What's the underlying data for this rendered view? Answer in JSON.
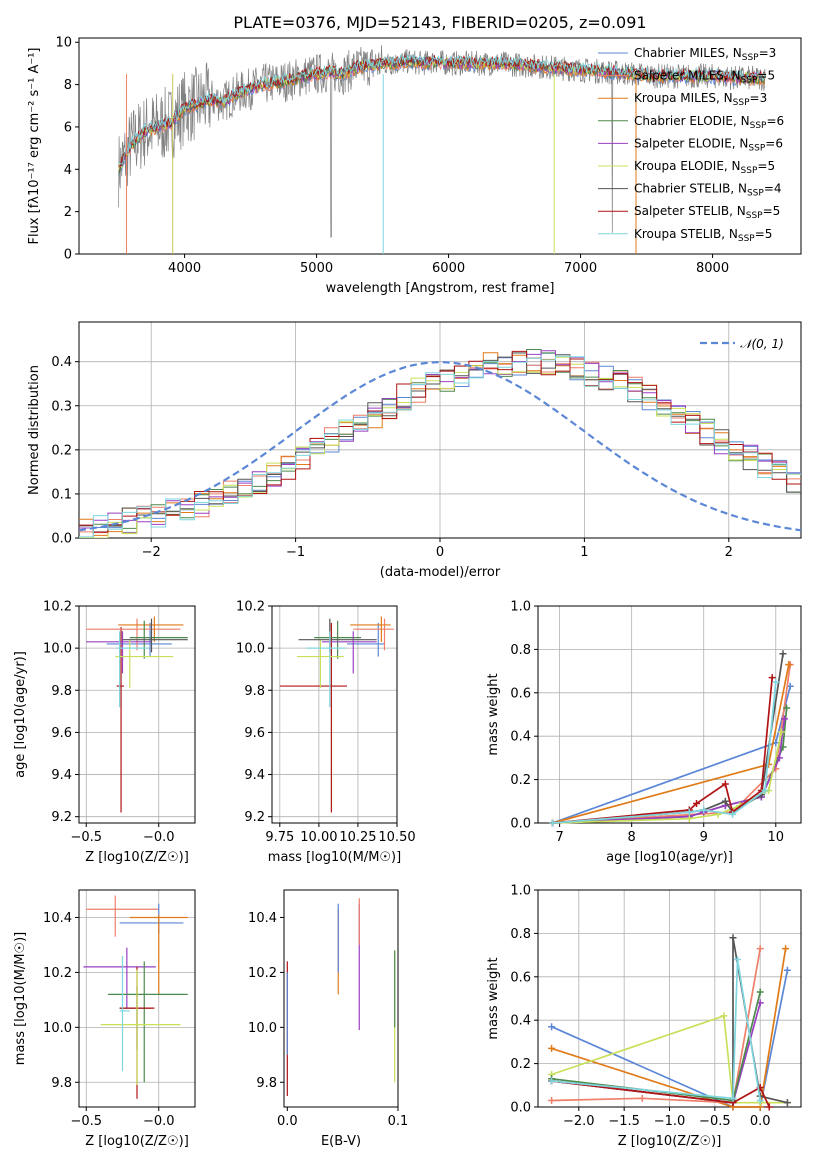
{
  "figure_title": "PLATE=0376, MJD=52143, FIBERID=0205, z=0.091",
  "colors": {
    "Chabrier MILES": "#5b87d6",
    "Salpeter MILES": "#ee7f6a",
    "Kroupa MILES": "#e07b1a",
    "Chabrier ELODIE": "#4d8a4d",
    "Salpeter ELODIE": "#9a3fc2",
    "Kroupa ELODIE": "#c8e05a",
    "Chabrier STELIB": "#555555",
    "Salpeter STELIB": "#b01414",
    "Kroupa STELIB": "#7fd6df",
    "data": "#808080",
    "gauss": "#5b87d6"
  },
  "chart_data": [
    {
      "type": "line",
      "id": "spectrum",
      "title": "PLATE=0376, MJD=52143, FIBERID=0205, z=0.091",
      "xlabel": "wavelength [Angstrom, rest frame]",
      "ylabel": "Flux [fλ10⁻¹⁷ erg cm⁻² s⁻¹ A⁻¹]",
      "xlim": [
        3200,
        8670
      ],
      "ylim": [
        0,
        10.2
      ],
      "xticks": [
        4000,
        5000,
        6000,
        7000,
        8000
      ],
      "yticks": [
        0,
        2,
        4,
        6,
        8,
        10
      ],
      "legend_position": "right",
      "legend": [
        "Chabrier MILES, N_SSP=3",
        "Salpeter MILES, N_SSP=5",
        "Kroupa MILES, N_SSP=3",
        "Chabrier ELODIE, N_SSP=6",
        "Salpeter ELODIE, N_SSP=6",
        "Kroupa ELODIE, N_SSP=5",
        "Chabrier STELIB, N_SSP=4",
        "Salpeter STELIB, N_SSP=5",
        "Kroupa STELIB, N_SSP=5"
      ],
      "continuum": {
        "x": [
          3500,
          3600,
          3700,
          3800,
          3900,
          4000,
          4100,
          4200,
          4300,
          4400,
          4500,
          4600,
          4700,
          4800,
          4900,
          5000,
          5100,
          5200,
          5300,
          5400,
          5500,
          5600,
          5700,
          5800,
          5900,
          6000,
          6200,
          6400,
          6600,
          6800,
          7000,
          7200,
          7400,
          7600,
          7800,
          8000,
          8200,
          8400
        ],
        "y": [
          4.0,
          5.2,
          5.8,
          6.0,
          6.2,
          6.9,
          7.1,
          7.3,
          7.2,
          7.6,
          7.8,
          8.0,
          8.1,
          8.2,
          8.4,
          8.5,
          8.6,
          8.5,
          8.8,
          8.9,
          9.0,
          9.0,
          9.1,
          9.0,
          9.1,
          9.0,
          9.0,
          9.0,
          8.9,
          8.8,
          8.7,
          8.6,
          8.5,
          8.4,
          8.4,
          8.4,
          8.3,
          8.3
        ]
      }
    },
    {
      "type": "line",
      "id": "residuals",
      "xlabel": "(data-model)/error",
      "ylabel": "Normed distribution",
      "xlim": [
        -2.5,
        2.5
      ],
      "ylim": [
        0,
        0.49
      ],
      "xticks": [
        -2,
        -1,
        0,
        1,
        2
      ],
      "yticks": [
        0.0,
        0.1,
        0.2,
        0.3,
        0.4
      ],
      "legend": [
        "𝒩(0, 1)"
      ],
      "legend_position": "upper right",
      "grid": true,
      "bin_width": 0.1,
      "histogram_base": [
        0.018,
        0.027,
        0.035,
        0.04,
        0.045,
        0.05,
        0.06,
        0.066,
        0.078,
        0.09,
        0.102,
        0.116,
        0.13,
        0.146,
        0.163,
        0.181,
        0.2,
        0.22,
        0.24,
        0.26,
        0.28,
        0.3,
        0.32,
        0.335,
        0.35,
        0.362,
        0.373,
        0.383,
        0.391,
        0.396,
        0.399,
        0.399,
        0.396,
        0.391,
        0.383,
        0.373,
        0.362,
        0.35,
        0.335,
        0.32,
        0.3,
        0.28,
        0.26,
        0.24,
        0.22,
        0.2,
        0.181,
        0.163,
        0.146,
        0.13
      ]
    },
    {
      "type": "scatter",
      "id": "age-vs-Z",
      "xlabel": "Z [log10(Z/Z☉)]",
      "ylabel": "age  [log10(age/yr)]",
      "xlim": [
        -0.55,
        0.25
      ],
      "ylim": [
        9.17,
        10.2
      ],
      "xticks": [
        -0.5,
        -0.0
      ],
      "yticks": [
        9.2,
        9.4,
        9.6,
        9.8,
        10.0,
        10.2
      ],
      "grid": true,
      "points": [
        {
          "series": "Salpeter STELIB",
          "x": -0.26,
          "y": 9.82,
          "xerr": [
            0.03,
            0.02
          ],
          "yerr": [
            0.6,
            0.28
          ]
        },
        {
          "series": "Chabrier MILES",
          "x": -0.06,
          "y": 10.02,
          "xerr": [
            0.3,
            0.15
          ],
          "yerr": [
            0.06,
            0.1
          ]
        },
        {
          "series": "Salpeter MILES",
          "x": -0.15,
          "y": 10.09,
          "xerr": [
            0.35,
            0.3
          ],
          "yerr": [
            0.1,
            0.05
          ]
        },
        {
          "series": "Kroupa MILES",
          "x": -0.03,
          "y": 10.11,
          "xerr": [
            0.25,
            0.2
          ],
          "yerr": [
            0.08,
            0.04
          ]
        },
        {
          "series": "Chabrier ELODIE",
          "x": -0.1,
          "y": 10.05,
          "xerr": [
            0.1,
            0.3
          ],
          "yerr": [
            0.1,
            0.08
          ]
        },
        {
          "series": "Salpeter ELODIE",
          "x": -0.25,
          "y": 10.03,
          "xerr": [
            0.25,
            0.2
          ],
          "yerr": [
            0.15,
            0.05
          ]
        },
        {
          "series": "Kroupa ELODIE",
          "x": -0.2,
          "y": 9.96,
          "xerr": [
            0.1,
            0.3
          ],
          "yerr": [
            0.15,
            0.08
          ]
        },
        {
          "series": "Chabrier STELIB",
          "x": -0.05,
          "y": 10.04,
          "xerr": [
            0.2,
            0.25
          ],
          "yerr": [
            0.06,
            0.1
          ]
        },
        {
          "series": "Kroupa STELIB",
          "x": -0.27,
          "y": 10.0,
          "xerr": [
            0.02,
            0.2
          ],
          "yerr": [
            0.28,
            0.08
          ]
        }
      ]
    },
    {
      "type": "scatter",
      "id": "age-vs-mass",
      "xlabel": "mass [log10(M/M☉)]",
      "xlim": [
        9.7,
        10.5
      ],
      "ylim": [
        9.17,
        10.2
      ],
      "xticks": [
        9.75,
        10.0,
        10.25,
        10.5
      ],
      "xticklabels": [
        "9.75",
        "10.00",
        "10.25",
        "10.50"
      ],
      "yticks": [
        9.2,
        9.4,
        9.6,
        9.8,
        10.0,
        10.2
      ],
      "grid": true,
      "points": [
        {
          "series": "Salpeter STELIB",
          "x": 10.08,
          "y": 9.82,
          "xerr": [
            0.33,
            0.1
          ],
          "yerr": [
            0.6,
            0.3
          ]
        },
        {
          "series": "Chabrier MILES",
          "x": 10.38,
          "y": 10.02,
          "xerr": [
            0.2,
            0.04
          ],
          "yerr": [
            0.06,
            0.1
          ]
        },
        {
          "series": "Salpeter MILES",
          "x": 10.42,
          "y": 10.09,
          "xerr": [
            0.2,
            0.06
          ],
          "yerr": [
            0.1,
            0.05
          ]
        },
        {
          "series": "Kroupa MILES",
          "x": 10.4,
          "y": 10.11,
          "xerr": [
            0.2,
            0.06
          ],
          "yerr": [
            0.08,
            0.04
          ]
        },
        {
          "series": "Chabrier ELODIE",
          "x": 10.12,
          "y": 10.05,
          "xerr": [
            0.15,
            0.15
          ],
          "yerr": [
            0.1,
            0.08
          ]
        },
        {
          "series": "Salpeter ELODIE",
          "x": 10.22,
          "y": 10.03,
          "xerr": [
            0.2,
            0.15
          ],
          "yerr": [
            0.15,
            0.05
          ]
        },
        {
          "series": "Kroupa ELODIE",
          "x": 10.01,
          "y": 9.96,
          "xerr": [
            0.15,
            0.15
          ],
          "yerr": [
            0.15,
            0.08
          ]
        },
        {
          "series": "Chabrier STELIB",
          "x": 10.07,
          "y": 10.04,
          "xerr": [
            0.2,
            0.3
          ],
          "yerr": [
            0.06,
            0.1
          ]
        },
        {
          "series": "Kroupa STELIB",
          "x": 10.07,
          "y": 10.0,
          "xerr": [
            0.15,
            0.1
          ],
          "yerr": [
            0.28,
            0.08
          ]
        }
      ]
    },
    {
      "type": "line",
      "id": "mass-weight-vs-age",
      "xlabel": "age  [log10(age/yr)]",
      "ylabel": "mass weight",
      "xlim": [
        6.7,
        10.35
      ],
      "ylim": [
        0,
        1.0
      ],
      "xticks": [
        7,
        8,
        9,
        10
      ],
      "yticks": [
        0.0,
        0.2,
        0.4,
        0.6,
        0.8,
        1.0
      ],
      "grid": true,
      "series": [
        {
          "name": "Chabrier MILES",
          "x": [
            6.9,
            10.0,
            10.2
          ],
          "y": [
            0.0,
            0.37,
            0.63
          ]
        },
        {
          "name": "Salpeter MILES",
          "x": [
            6.9,
            9.4,
            10.0,
            10.2
          ],
          "y": [
            0.0,
            0.05,
            0.25,
            0.73
          ]
        },
        {
          "name": "Kroupa MILES",
          "x": [
            6.9,
            9.9,
            10.18
          ],
          "y": [
            0.0,
            0.27,
            0.73
          ]
        },
        {
          "name": "Chabrier ELODIE",
          "x": [
            6.9,
            8.8,
            9.0,
            9.3,
            9.8,
            10.1,
            10.15
          ],
          "y": [
            0.0,
            0.03,
            0.05,
            0.08,
            0.12,
            0.35,
            0.53
          ]
        },
        {
          "name": "Salpeter ELODIE",
          "x": [
            6.9,
            8.8,
            9.0,
            9.3,
            9.8,
            10.05,
            10.12
          ],
          "y": [
            0.0,
            0.03,
            0.05,
            0.08,
            0.12,
            0.3,
            0.48
          ]
        },
        {
          "name": "Kroupa ELODIE",
          "x": [
            6.9,
            8.8,
            9.2,
            9.5,
            9.9,
            10.08
          ],
          "y": [
            0.0,
            0.02,
            0.04,
            0.08,
            0.15,
            0.42
          ]
        },
        {
          "name": "Chabrier STELIB",
          "x": [
            6.9,
            8.8,
            9.0,
            9.3,
            9.4,
            9.8,
            10.1
          ],
          "y": [
            0.0,
            0.05,
            0.06,
            0.1,
            0.05,
            0.13,
            0.78
          ]
        },
        {
          "name": "Salpeter STELIB",
          "x": [
            6.9,
            8.8,
            8.9,
            9.3,
            9.4,
            9.8,
            9.95
          ],
          "y": [
            0.0,
            0.06,
            0.09,
            0.18,
            0.05,
            0.15,
            0.67
          ]
        },
        {
          "name": "Kroupa STELIB",
          "x": [
            6.9,
            8.8,
            9.0,
            9.4,
            9.85,
            10.0
          ],
          "y": [
            0.0,
            0.05,
            0.06,
            0.04,
            0.15,
            0.65
          ]
        }
      ]
    },
    {
      "type": "scatter",
      "id": "mass-vs-Z",
      "xlabel": "Z [log10(Z/Z☉)]",
      "ylabel": "mass [log10(M/M☉)]",
      "xlim": [
        -0.55,
        0.25
      ],
      "ylim": [
        9.71,
        10.5
      ],
      "xticks": [
        -0.5,
        -0.0
      ],
      "yticks": [
        9.8,
        10.0,
        10.2,
        10.4
      ],
      "grid": true,
      "points": [
        {
          "series": "Salpeter MILES",
          "x": -0.3,
          "y": 10.43,
          "xerr": [
            0.2,
            0.3
          ],
          "yerr": [
            0.1,
            0.05
          ]
        },
        {
          "series": "Chabrier MILES",
          "x": 0.0,
          "y": 10.38,
          "xerr": [
            0.27,
            0.17
          ],
          "yerr": [
            0.04,
            0.07
          ]
        },
        {
          "series": "Kroupa MILES",
          "x": 0.0,
          "y": 10.4,
          "xerr": [
            0.2,
            0.2
          ],
          "yerr": [
            0.28,
            0.01
          ]
        },
        {
          "series": "Salpeter ELODIE",
          "x": -0.22,
          "y": 10.22,
          "xerr": [
            0.3,
            0.2
          ],
          "yerr": [
            0.15,
            0.07
          ]
        },
        {
          "series": "Chabrier ELODIE",
          "x": -0.1,
          "y": 10.12,
          "xerr": [
            0.25,
            0.3
          ],
          "yerr": [
            0.32,
            0.12
          ]
        },
        {
          "series": "Chabrier STELIB",
          "x": -0.15,
          "y": 10.07,
          "xerr": [
            0.12,
            0.1
          ],
          "yerr": [
            0.15,
            0.08
          ]
        },
        {
          "series": "Salpeter STELIB",
          "x": -0.15,
          "y": 10.07,
          "xerr": [
            0.12,
            0.12
          ],
          "yerr": [
            0.33,
            0.15
          ]
        },
        {
          "series": "Kroupa ELODIE",
          "x": -0.15,
          "y": 10.01,
          "xerr": [
            0.25,
            0.3
          ],
          "yerr": [
            0.22,
            0.2
          ]
        },
        {
          "series": "Kroupa STELIB",
          "x": -0.25,
          "y": 10.06,
          "xerr": [
            0.02,
            0.05
          ],
          "yerr": [
            0.22,
            0.2
          ]
        }
      ]
    },
    {
      "type": "scatter",
      "id": "mass-vs-EBV",
      "xlabel": "E(B-V)",
      "xlim": [
        -0.003,
        0.1
      ],
      "ylim": [
        9.71,
        10.5
      ],
      "xticks": [
        0.0,
        0.1
      ],
      "yticks": [
        9.8,
        10.0,
        10.2,
        10.4
      ],
      "points": [
        {
          "series": "Salpeter STELIB",
          "x": 0.0,
          "y": 9.98,
          "yerr": [
            0.23,
            0.26
          ]
        },
        {
          "series": "Chabrier MILES",
          "x": 0.0,
          "y": 10.05,
          "yerr": [
            0.15,
            0.15
          ]
        },
        {
          "series": "Kroupa MILES",
          "x": 0.046,
          "y": 10.28,
          "yerr": [
            0.16,
            0.15
          ]
        },
        {
          "series": "Chabrier MILES",
          "x": 0.046,
          "y": 10.3,
          "yerr": [
            0.1,
            0.15
          ]
        },
        {
          "series": "Salpeter ELODIE",
          "x": 0.065,
          "y": 10.22,
          "yerr": [
            0.23,
            0.23
          ]
        },
        {
          "series": "Salpeter MILES",
          "x": 0.065,
          "y": 10.35,
          "yerr": [
            0.05,
            0.12
          ]
        },
        {
          "series": "Kroupa ELODIE",
          "x": 0.097,
          "y": 10.0,
          "yerr": [
            0.2,
            0.28
          ]
        },
        {
          "series": "Chabrier ELODIE",
          "x": 0.097,
          "y": 10.1,
          "yerr": [
            0.1,
            0.18
          ]
        }
      ]
    },
    {
      "type": "line",
      "id": "mass-weight-vs-Z",
      "xlabel": "Z [log10(Z/Z☉)]",
      "ylabel": "mass weight",
      "xlim": [
        -2.45,
        0.45
      ],
      "ylim": [
        0,
        1.0
      ],
      "xticks": [
        -2.0,
        -1.5,
        -1.0,
        -0.5,
        0.0
      ],
      "yticks": [
        0.0,
        0.2,
        0.4,
        0.6,
        0.8,
        1.0
      ],
      "grid": true,
      "series": [
        {
          "name": "Chabrier MILES",
          "x": [
            -2.3,
            -0.3,
            0.0,
            0.3
          ],
          "y": [
            0.37,
            0.0,
            0.0,
            0.63
          ]
        },
        {
          "name": "Kroupa MILES",
          "x": [
            -2.3,
            -0.3,
            0.0,
            0.28
          ],
          "y": [
            0.27,
            0.0,
            0.0,
            0.73
          ]
        },
        {
          "name": "Salpeter MILES",
          "x": [
            -2.3,
            -1.3,
            -0.3,
            0.0
          ],
          "y": [
            0.03,
            0.04,
            0.02,
            0.73
          ]
        },
        {
          "name": "Kroupa ELODIE",
          "x": [
            -2.3,
            -0.4,
            -0.3,
            0.0,
            0.3
          ],
          "y": [
            0.15,
            0.42,
            0.02,
            0.02,
            0.02
          ]
        },
        {
          "name": "Salpeter ELODIE",
          "x": [
            -2.3,
            -0.3,
            0.0
          ],
          "y": [
            0.12,
            0.02,
            0.48
          ]
        },
        {
          "name": "Chabrier ELODIE",
          "x": [
            -2.3,
            -0.3,
            0.0
          ],
          "y": [
            0.13,
            0.03,
            0.53
          ]
        },
        {
          "name": "Chabrier STELIB",
          "x": [
            -2.3,
            -0.3,
            -0.3,
            0.0,
            0.3
          ],
          "y": [
            0.12,
            0.02,
            0.78,
            0.05,
            0.02
          ]
        },
        {
          "name": "Salpeter STELIB",
          "x": [
            -2.3,
            -0.3,
            0.0,
            0.1
          ],
          "y": [
            0.12,
            0.02,
            0.09,
            0.0
          ]
        },
        {
          "name": "Kroupa STELIB",
          "x": [
            -2.3,
            -0.3,
            -0.25,
            0.0
          ],
          "y": [
            0.12,
            0.04,
            0.68,
            0.03
          ]
        }
      ]
    }
  ]
}
